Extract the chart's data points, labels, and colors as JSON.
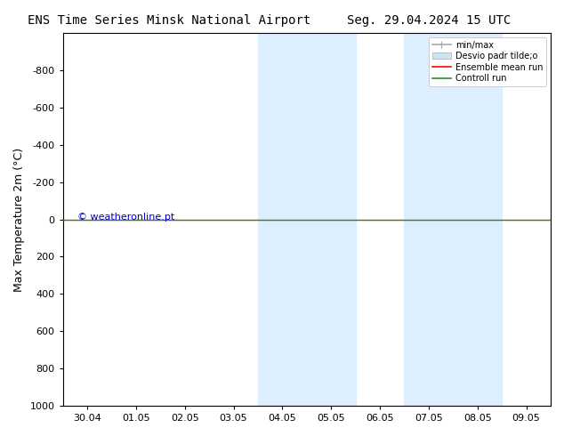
{
  "title_left": "ENS Time Series Minsk National Airport",
  "title_right": "Seg. 29.04.2024 15 UTC",
  "ylabel": "Max Temperature 2m (°C)",
  "ylim_bottom": 1000,
  "ylim_top": -1000,
  "yticks": [
    -800,
    -600,
    -400,
    -200,
    0,
    200,
    400,
    600,
    800,
    1000
  ],
  "x_tick_labels": [
    "30.04",
    "01.05",
    "02.05",
    "03.05",
    "04.05",
    "05.05",
    "06.05",
    "07.05",
    "08.05",
    "09.05"
  ],
  "x_tick_positions": [
    0,
    1,
    2,
    3,
    4,
    5,
    6,
    7,
    8,
    9
  ],
  "xlim": [
    -0.5,
    9.5
  ],
  "shaded_bands": [
    {
      "x_start": 3.5,
      "x_end": 5.5
    },
    {
      "x_start": 6.5,
      "x_end": 8.5
    }
  ],
  "shaded_color": "#ddeeff",
  "control_run_y": 0,
  "control_run_color": "#228b22",
  "ensemble_mean_color": "#ff0000",
  "watermark": "© weatheronline.pt",
  "watermark_color": "#0000cc",
  "legend_minmax_color": "#aaaaaa",
  "legend_std_color": "#cce5f5",
  "legend_mean_color": "#ff0000",
  "legend_control_color": "#228b22",
  "background_color": "#ffffff",
  "tick_fontsize": 8,
  "ylabel_fontsize": 9,
  "title_fontsize": 10
}
